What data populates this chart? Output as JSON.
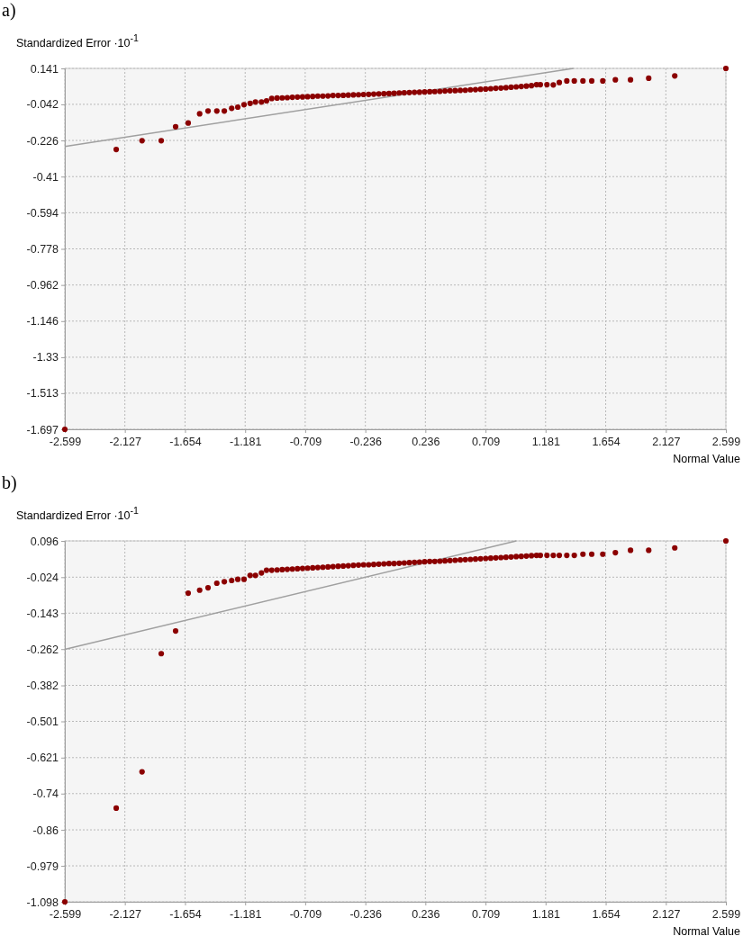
{
  "chart_data": [
    {
      "type": "scatter",
      "title": "a)",
      "ylabel": "Standardized Error ·10$^{-1}$",
      "xlabel": "Normal Value",
      "grid": true,
      "xlim": [
        -2.599,
        2.599
      ],
      "xticks": [
        -2.599,
        -2.127,
        -1.654,
        -1.181,
        -0.709,
        -0.236,
        0.236,
        0.709,
        1.181,
        1.654,
        2.127,
        2.599
      ],
      "ylim": [
        -1.697,
        0.141
      ],
      "yticks": [
        0.141,
        -0.042,
        -0.226,
        -0.41,
        -0.594,
        -0.778,
        -0.962,
        -1.146,
        -1.33,
        -1.513,
        -1.697
      ],
      "series": [
        {
          "marker": "circle",
          "color": "#8b0000",
          "x": [
            -2.599,
            -2.195,
            -1.992,
            -1.841,
            -1.728,
            -1.629,
            -1.539,
            -1.473,
            -1.404,
            -1.345,
            -1.287,
            -1.239,
            -1.19,
            -1.142,
            -1.1,
            -1.053,
            -1.013,
            -0.972,
            -0.93,
            -0.89,
            -0.85,
            -0.81,
            -0.77,
            -0.73,
            -0.69,
            -0.65,
            -0.61,
            -0.57,
            -0.53,
            -0.49,
            -0.45,
            -0.41,
            -0.37,
            -0.33,
            -0.29,
            -0.25,
            -0.21,
            -0.17,
            -0.13,
            -0.09,
            -0.05,
            -0.01,
            0.03,
            0.07,
            0.11,
            0.15,
            0.19,
            0.23,
            0.27,
            0.31,
            0.35,
            0.39,
            0.43,
            0.47,
            0.51,
            0.55,
            0.59,
            0.63,
            0.67,
            0.71,
            0.75,
            0.79,
            0.83,
            0.87,
            0.91,
            0.95,
            0.99,
            1.03,
            1.07,
            1.11,
            1.14,
            1.192,
            1.242,
            1.289,
            1.348,
            1.407,
            1.475,
            1.544,
            1.631,
            1.73,
            1.849,
            1.992,
            2.197,
            2.599
          ],
          "values": [
            -1.697,
            -0.272,
            -0.227,
            -0.227,
            -0.156,
            -0.137,
            -0.09,
            -0.076,
            -0.076,
            -0.076,
            -0.062,
            -0.056,
            -0.044,
            -0.037,
            -0.03,
            -0.03,
            -0.024,
            -0.012,
            -0.01,
            -0.009,
            -0.008,
            -0.006,
            -0.005,
            -0.004,
            -0.003,
            -0.002,
            0.0,
            0.0,
            0.001,
            0.003,
            0.003,
            0.004,
            0.005,
            0.006,
            0.007,
            0.008,
            0.009,
            0.01,
            0.011,
            0.012,
            0.013,
            0.014,
            0.016,
            0.017,
            0.018,
            0.019,
            0.02,
            0.021,
            0.022,
            0.023,
            0.024,
            0.026,
            0.027,
            0.028,
            0.029,
            0.03,
            0.032,
            0.033,
            0.035,
            0.036,
            0.038,
            0.04,
            0.041,
            0.043,
            0.045,
            0.047,
            0.049,
            0.051,
            0.053,
            0.058,
            0.058,
            0.058,
            0.057,
            0.069,
            0.077,
            0.077,
            0.077,
            0.077,
            0.077,
            0.083,
            0.083,
            0.091,
            0.103,
            0.141
          ]
        },
        {
          "type": "line",
          "color": "#a0a0a0",
          "x": [
            -2.599,
            1.4
          ],
          "values": [
            -0.257,
            0.141
          ]
        }
      ]
    },
    {
      "type": "scatter",
      "title": "b)",
      "ylabel": "Standardized Error ·10$^{-1}$",
      "xlabel": "Normal Value",
      "grid": true,
      "xlim": [
        -2.599,
        2.599
      ],
      "xticks": [
        -2.599,
        -2.127,
        -1.654,
        -1.181,
        -0.709,
        -0.236,
        0.236,
        0.709,
        1.181,
        1.654,
        2.127,
        2.599
      ],
      "ylim": [
        -1.098,
        0.096
      ],
      "yticks": [
        0.096,
        -0.024,
        -0.143,
        -0.262,
        -0.382,
        -0.501,
        -0.621,
        -0.74,
        -0.86,
        -0.979,
        -1.098
      ],
      "series": [
        {
          "marker": "circle",
          "color": "#8b0000",
          "x": [
            -2.599,
            -2.195,
            -1.992,
            -1.841,
            -1.728,
            -1.629,
            -1.539,
            -1.473,
            -1.404,
            -1.345,
            -1.287,
            -1.239,
            -1.19,
            -1.142,
            -1.1,
            -1.053,
            -1.013,
            -0.972,
            -0.93,
            -0.89,
            -0.85,
            -0.81,
            -0.77,
            -0.73,
            -0.69,
            -0.65,
            -0.61,
            -0.57,
            -0.53,
            -0.49,
            -0.45,
            -0.41,
            -0.37,
            -0.33,
            -0.29,
            -0.25,
            -0.21,
            -0.17,
            -0.13,
            -0.09,
            -0.05,
            -0.01,
            0.03,
            0.07,
            0.11,
            0.15,
            0.19,
            0.23,
            0.27,
            0.31,
            0.35,
            0.39,
            0.43,
            0.47,
            0.51,
            0.55,
            0.59,
            0.63,
            0.67,
            0.71,
            0.75,
            0.79,
            0.83,
            0.87,
            0.91,
            0.95,
            0.99,
            1.03,
            1.07,
            1.11,
            1.14,
            1.192,
            1.242,
            1.289,
            1.348,
            1.407,
            1.475,
            1.544,
            1.631,
            1.73,
            1.849,
            1.992,
            2.197,
            2.599
          ],
          "values": [
            -1.098,
            -0.788,
            -0.668,
            -0.277,
            -0.202,
            -0.077,
            -0.067,
            -0.059,
            -0.044,
            -0.039,
            -0.035,
            -0.031,
            -0.031,
            -0.018,
            -0.018,
            -0.01,
            -0.001,
            -0.001,
            0.0,
            0.001,
            0.002,
            0.003,
            0.004,
            0.005,
            0.006,
            0.007,
            0.008,
            0.009,
            0.01,
            0.011,
            0.012,
            0.013,
            0.014,
            0.015,
            0.016,
            0.017,
            0.017,
            0.018,
            0.019,
            0.02,
            0.021,
            0.021,
            0.022,
            0.023,
            0.024,
            0.025,
            0.026,
            0.027,
            0.028,
            0.028,
            0.029,
            0.03,
            0.031,
            0.032,
            0.033,
            0.034,
            0.035,
            0.036,
            0.037,
            0.038,
            0.039,
            0.04,
            0.041,
            0.042,
            0.043,
            0.044,
            0.045,
            0.046,
            0.047,
            0.048,
            0.048,
            0.048,
            0.048,
            0.048,
            0.048,
            0.048,
            0.052,
            0.052,
            0.052,
            0.057,
            0.065,
            0.065,
            0.073,
            0.096
          ]
        },
        {
          "type": "line",
          "color": "#a0a0a0",
          "x": [
            -2.599,
            0.951
          ],
          "values": [
            -0.263,
            0.096
          ]
        }
      ]
    }
  ]
}
